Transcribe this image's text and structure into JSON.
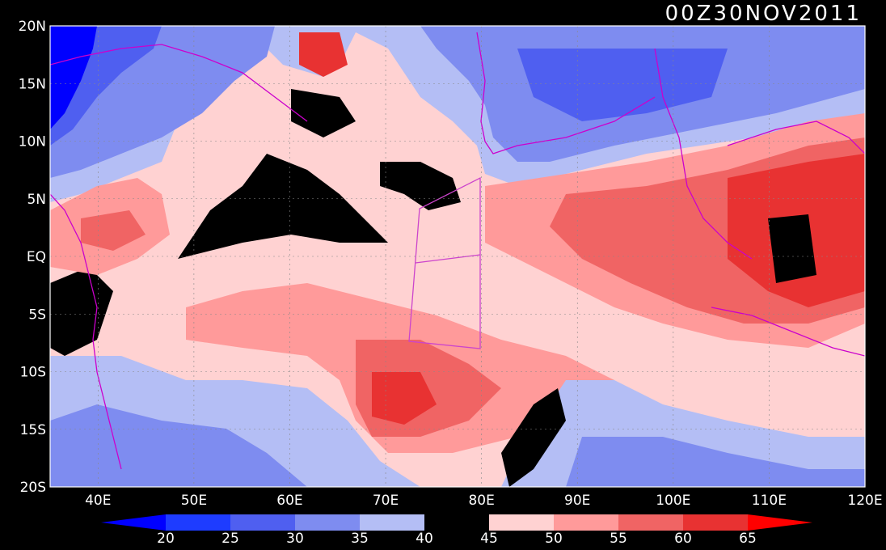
{
  "title": "00Z30NOV2011",
  "axes": {
    "lat_labels": [
      "20N",
      "15N",
      "10N",
      "5N",
      "EQ",
      "5S",
      "10S",
      "15S",
      "20S"
    ],
    "lon_labels": [
      "40E",
      "50E",
      "60E",
      "70E",
      "80E",
      "90E",
      "100E",
      "110E",
      "120E"
    ]
  },
  "colorbar": {
    "levels": [
      "20",
      "25",
      "30",
      "35",
      "40",
      "45",
      "50",
      "55",
      "60",
      "65"
    ],
    "colors": [
      "#0000ff",
      "#1e3cff",
      "#4f5ff0",
      "#7e8cf0",
      "#b4bef5",
      "#000000",
      "#ffd2d2",
      "#ff9a9a",
      "#f06464",
      "#e83232",
      "#ff0000"
    ]
  },
  "colors": {
    "coastline": "#cc00cc",
    "grid": "#888888",
    "box": "#cc44cc"
  }
}
